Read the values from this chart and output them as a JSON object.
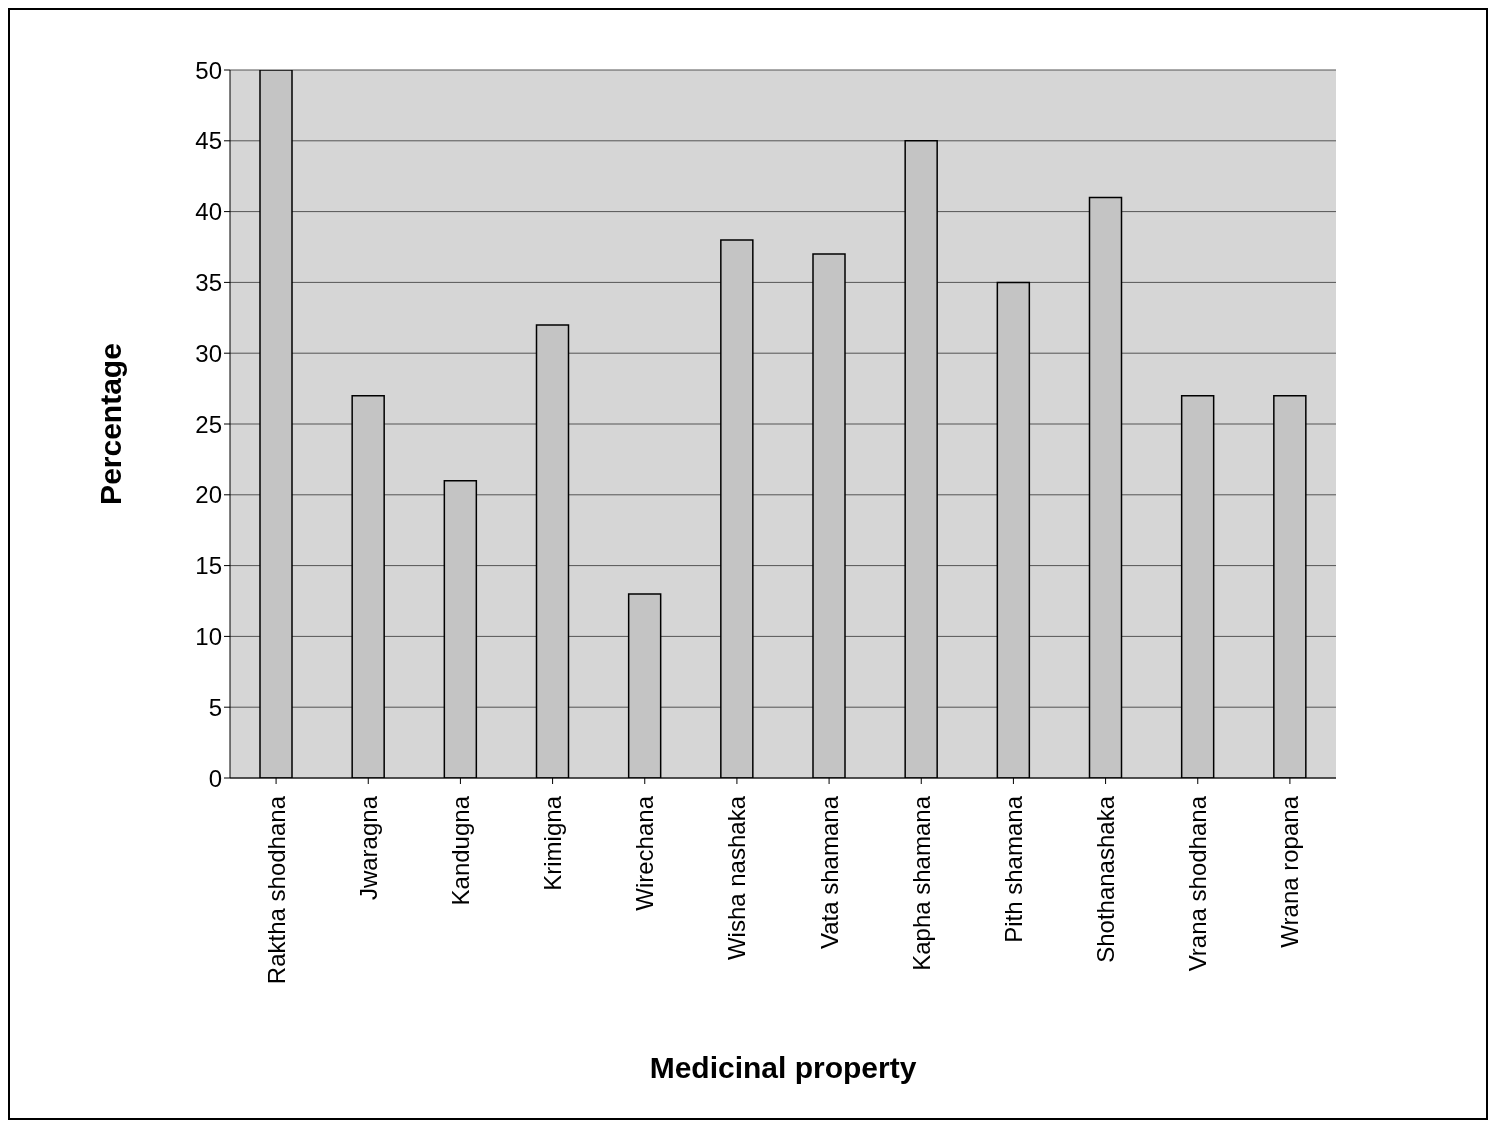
{
  "chart_data": {
    "type": "bar",
    "xlabel": "Medicinal property",
    "ylabel": "Percentage",
    "categories": [
      "Raktha shodhana",
      "Jwaragna",
      "Kandugna",
      "Krimigna",
      "Wirechana",
      "Wisha nashaka",
      "Vata shamana",
      "Kapha shamana",
      "Pith shamana",
      "Shothanashaka",
      "Vrana shodhana",
      "Wrana ropana"
    ],
    "values": [
      50,
      27,
      21,
      32,
      13,
      38,
      37,
      45,
      35,
      41,
      27,
      27
    ],
    "color": "#c4c4c4",
    "ylim": [
      0,
      50
    ],
    "yticks": [
      0,
      5,
      10,
      15,
      20,
      25,
      30,
      35,
      40,
      45,
      50
    ],
    "grid": "y"
  }
}
